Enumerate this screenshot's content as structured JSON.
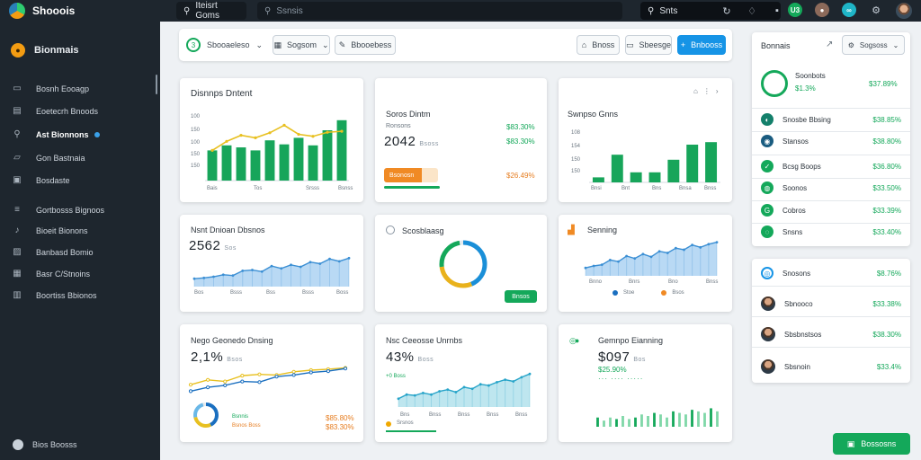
{
  "app": {
    "name": "Shooois",
    "logo_icon": "app-logo-icon"
  },
  "topbar": {
    "search_a": "Iteisrt Goms",
    "search_b": "Ssnsis",
    "search_c": "Snts",
    "icons": [
      "search-icon",
      "refresh-icon",
      "bell-icon",
      "close-icon"
    ],
    "badge": "U3",
    "accent": "#14a85a"
  },
  "sidebar": {
    "brand": "Bionmais",
    "items": [
      {
        "label": "Bosnh Eooagp",
        "icon": "home-icon"
      },
      {
        "label": "Eoetecrh Bnoods",
        "icon": "document-icon"
      },
      {
        "label": "Ast Bionnons",
        "icon": "search-icon",
        "active": true
      },
      {
        "label": "Gon Bastnaia",
        "icon": "folder-icon"
      },
      {
        "label": "Bosdaste",
        "icon": "chart-icon"
      },
      {
        "label": "Gortbosss Bignoos",
        "icon": "filter-icon"
      },
      {
        "label": "Bioeit Bionons",
        "icon": "music-icon"
      },
      {
        "label": "Banbasd Bomio",
        "icon": "image-icon"
      },
      {
        "label": "Basr C/Stnoins",
        "icon": "calendar-icon"
      },
      {
        "label": "Boortiss Bbionos",
        "icon": "box-icon"
      }
    ],
    "bottom": "Bios Boosss"
  },
  "toolbar": {
    "select": "Sbooaeleso",
    "select_badge": "3",
    "filter": "Sogsom",
    "date": "Bbooebess",
    "btn1": "Bnoss",
    "btn2": "Sbeesge",
    "primary": "Bnbooss"
  },
  "cards": {
    "c1": {
      "title": "Disnnps Dntent",
      "ticks": [
        "100",
        "150",
        "100",
        "150",
        "150"
      ],
      "xticks": [
        "Bais",
        "Tos",
        "Srsss",
        "Bsnss"
      ]
    },
    "c2": {
      "title": "Soros Dintm",
      "value": "2042",
      "value_sub": "Bsoss",
      "pct1": "$83.30%",
      "pct2": "$83.30%",
      "pct3": "$26.49%",
      "pill": "Bsonosn",
      "label1": "Ronsons"
    },
    "c3": {
      "title": "Swnpso Gnns",
      "ticks": [
        "108",
        "154",
        "150",
        "150",
        "150"
      ],
      "xticks": [
        "Bnsi",
        "Bnt",
        "Bns",
        "Bnsa",
        "Bnss"
      ]
    },
    "c4": {
      "title": "Nsnt Dnioan Dbsnos",
      "value": "2562",
      "value_sub": "Sos",
      "xticks": [
        "Bos",
        "Bsss",
        "Bss",
        "Bsss",
        "Boss"
      ]
    },
    "c5": {
      "title": "Scosblaasg",
      "btn": "Bnsos",
      "donut_pct": 0.72
    },
    "c6": {
      "title": "Senning",
      "xticks": [
        "Bnno",
        "Bnrs",
        "Bno",
        "Bnss"
      ],
      "legend": [
        "Stoe",
        "Bsos"
      ]
    },
    "c7": {
      "title": "Nego Geonedo Dnsing",
      "value": "2,1%",
      "value_sub": "Bsos",
      "pct1": "$85.80%",
      "pct2": "$83.30%",
      "lbl1": "Bsnnis",
      "lbl2": "Bsnos Boss"
    },
    "c8": {
      "title": "Nsc Ceeosse Unrnbs",
      "value": "43%",
      "value_sub": "Boss",
      "pct1": "+0 Boss",
      "xticks": [
        "Bns",
        "Bnss",
        "Bnss",
        "Bnss",
        "Bnss"
      ],
      "lbl1": "Srsnos"
    },
    "c9": {
      "title": "Gemnpo Eianning",
      "value": "$097",
      "value_sub": "Bos",
      "pct1": "$25.90%",
      "dots": "··· ···· ·····"
    }
  },
  "chart_data": [
    {
      "type": "bar",
      "categories": [
        "1",
        "2",
        "3",
        "4",
        "5",
        "6",
        "7",
        "8",
        "9",
        "10"
      ],
      "values": [
        60,
        70,
        66,
        60,
        80,
        72,
        85,
        70,
        100,
        120
      ],
      "line": [
        60,
        78,
        90,
        85,
        95,
        110,
        92,
        88,
        96,
        98
      ],
      "ylim": [
        0,
        150
      ]
    },
    {
      "type": "bar",
      "categories": [
        "1",
        "2",
        "3",
        "4",
        "5",
        "6",
        "7"
      ],
      "values": [
        10,
        55,
        20,
        20,
        45,
        75,
        80
      ],
      "ylim": [
        0,
        100
      ]
    },
    {
      "type": "area",
      "values": [
        20,
        22,
        25,
        30,
        28,
        40,
        42,
        38,
        52,
        46,
        55,
        50,
        62,
        58,
        70,
        64,
        72
      ],
      "ylim": [
        0,
        100
      ]
    },
    {
      "type": "area",
      "values": [
        20,
        25,
        28,
        40,
        36,
        50,
        44,
        55,
        48,
        62,
        58,
        70,
        66,
        78,
        72,
        80,
        85
      ],
      "ylim": [
        0,
        100
      ]
    },
    {
      "type": "line",
      "series": [
        {
          "values": [
            30,
            45,
            40,
            58,
            62,
            60,
            70,
            75,
            78,
            82
          ]
        },
        {
          "values": [
            10,
            22,
            28,
            40,
            38,
            55,
            60,
            68,
            72,
            80
          ]
        }
      ],
      "ylim": [
        0,
        100
      ]
    },
    {
      "type": "area",
      "values": [
        20,
        30,
        28,
        34,
        30,
        38,
        42,
        36,
        48,
        44,
        55,
        52,
        60,
        66,
        62,
        72,
        80
      ],
      "ylim": [
        0,
        100
      ]
    },
    {
      "type": "bar",
      "values": [
        6,
        4,
        6,
        5,
        7,
        5,
        6,
        8,
        7,
        9,
        8,
        6,
        10,
        9,
        8,
        11,
        10,
        9,
        12,
        10
      ],
      "ylim": [
        0,
        14
      ]
    }
  ],
  "right_panel": {
    "title": "Bonnais",
    "select": "Sogsoss",
    "hero": {
      "name": "Soonbots",
      "pct": "$1.3%",
      "value": "$37.89%"
    },
    "rows": [
      {
        "name": "Snosbe Bbsing",
        "value": "$38.85%",
        "icon": "teal-circle-icon"
      },
      {
        "name": "Stansos",
        "value": "$38.80%",
        "icon": "red-circle-icon"
      },
      {
        "name": "Bcsg Boops",
        "value": "$36.80%",
        "icon": "green-check-icon"
      },
      {
        "name": "Soonos",
        "value": "$33.50%",
        "icon": "green-leaf-icon"
      },
      {
        "name": "Cobros",
        "value": "$33.39%",
        "icon": "green-g-icon"
      },
      {
        "name": "Snsns",
        "value": "$33.40%",
        "icon": "green-o-icon"
      }
    ],
    "people": [
      {
        "name": "Snosons",
        "value": "$8.76%"
      },
      {
        "name": "Sbnooco",
        "value": "$33.38%"
      },
      {
        "name": "Sbsbnstsos",
        "value": "$38.30%"
      },
      {
        "name": "Sbsnoin",
        "value": "$33.4%"
      }
    ],
    "cta": "Bossosns"
  }
}
